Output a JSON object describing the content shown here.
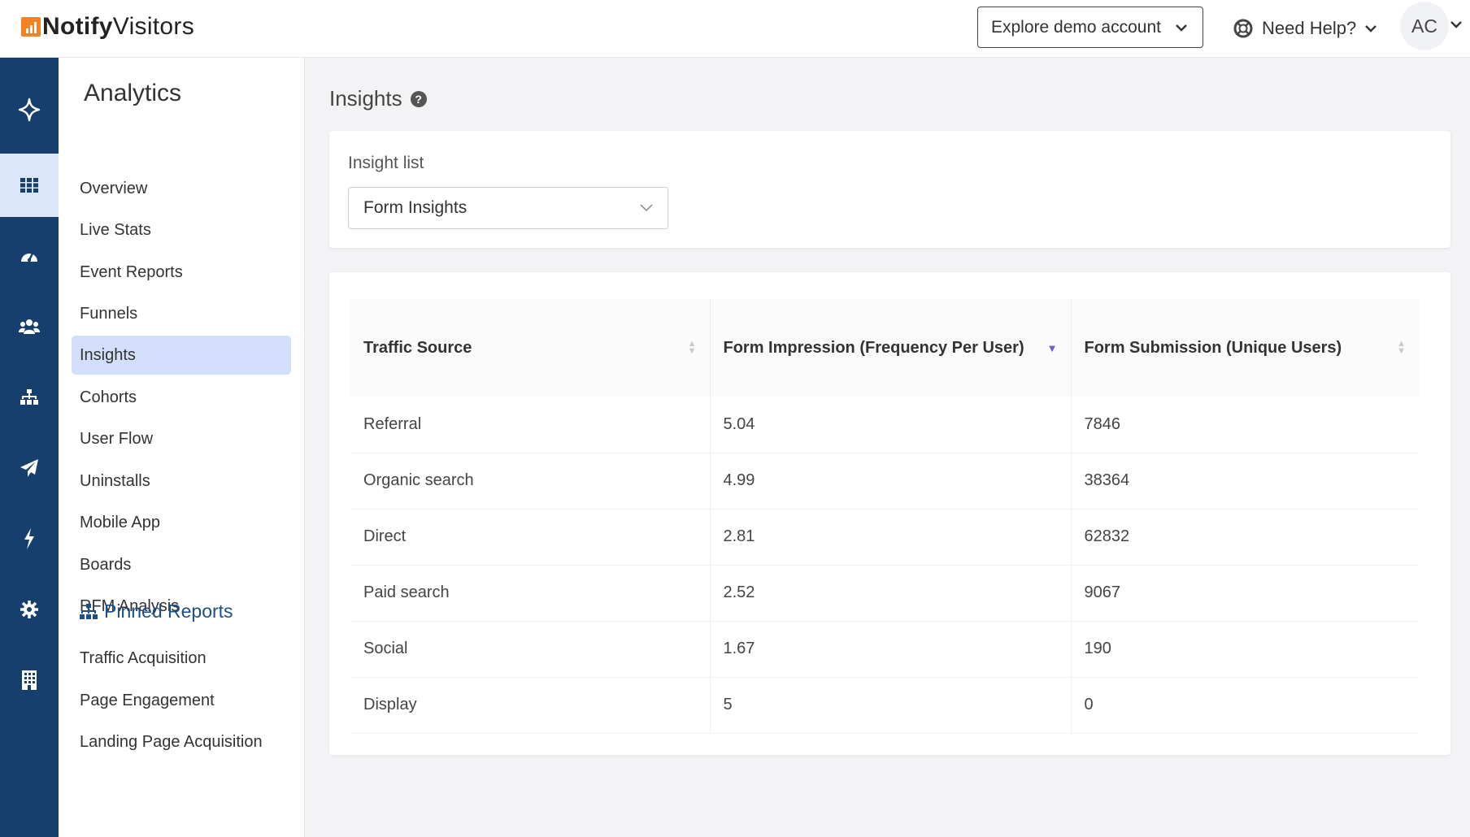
{
  "header": {
    "logo_bold": "Notify",
    "logo_regular": "Visitors",
    "demo_button": "Explore demo account",
    "help_label": "Need Help?",
    "avatar_initials": "AC"
  },
  "rail": {
    "icons": [
      "sparkle-icon",
      "grid-icon",
      "dashboard-icon",
      "users-icon",
      "sitemap-icon",
      "send-icon",
      "bolt-icon",
      "gear-icon",
      "building-icon"
    ],
    "active_index": 1
  },
  "sidebar": {
    "title": "Analytics",
    "items": [
      {
        "label": "Overview"
      },
      {
        "label": "Live Stats"
      },
      {
        "label": "Event Reports"
      },
      {
        "label": "Funnels"
      },
      {
        "label": "Insights"
      },
      {
        "label": "Cohorts"
      },
      {
        "label": "User Flow"
      },
      {
        "label": "Uninstalls"
      },
      {
        "label": "Mobile App"
      },
      {
        "label": "Boards"
      },
      {
        "label": "RFM Analysis"
      }
    ],
    "active_item": "Insights",
    "pinned_title": "Pinned Reports",
    "pinned_items": [
      {
        "label": "Traffic Acquisition"
      },
      {
        "label": "Page Engagement"
      },
      {
        "label": "Landing Page Acquisition"
      }
    ]
  },
  "main": {
    "title": "Insights",
    "insight_list_label": "Insight list",
    "selected_insight": "Form Insights",
    "table": {
      "columns": [
        "Traffic Source",
        "Form Impression (Frequency Per User)",
        "Form Submission (Unique Users)"
      ],
      "rows": [
        [
          "Referral",
          "5.04",
          "7846"
        ],
        [
          "Organic search",
          "4.99",
          "38364"
        ],
        [
          "Direct",
          "2.81",
          "62832"
        ],
        [
          "Paid search",
          "2.52",
          "9067"
        ],
        [
          "Social",
          "1.67",
          "190"
        ],
        [
          "Display",
          "5",
          "0"
        ]
      ]
    }
  },
  "colors": {
    "rail_bg": "#173f6e",
    "rail_active": "#dce6fb",
    "nav_active": "#d2defa",
    "pinned_text": "#1d4f84",
    "sort_active": "#6b5bd6",
    "logo_orange": "#f58220"
  }
}
